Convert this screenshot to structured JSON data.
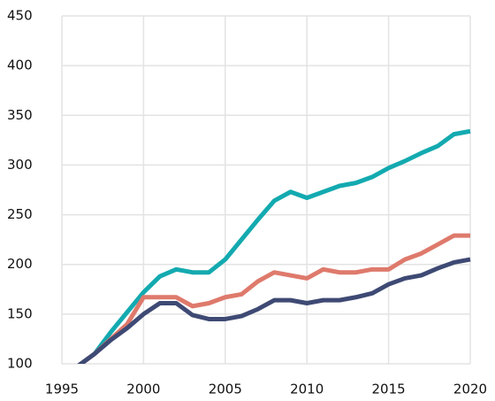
{
  "chart_data": {
    "type": "line",
    "x": [
      1996,
      1997,
      1998,
      1999,
      2000,
      2001,
      2002,
      2003,
      2004,
      2005,
      2006,
      2007,
      2008,
      2009,
      2010,
      2011,
      2012,
      2013,
      2014,
      2015,
      2016,
      2017,
      2018,
      2019,
      2020
    ],
    "series": [
      {
        "color": "#13aab0",
        "values": [
          98,
          110,
          132,
          152,
          172,
          188,
          195,
          192,
          192,
          205,
          225,
          245,
          264,
          273,
          267,
          273,
          279,
          282,
          288,
          297,
          304,
          312,
          319,
          331,
          334
        ]
      },
      {
        "color": "#de7a6c",
        "values": [
          98,
          110,
          125,
          140,
          167,
          167,
          167,
          158,
          161,
          167,
          170,
          183,
          192,
          189,
          186,
          195,
          192,
          192,
          195,
          195,
          205,
          211,
          220,
          229,
          229
        ]
      },
      {
        "color": "#3e4a74",
        "values": [
          98,
          110,
          124,
          136,
          150,
          161,
          161,
          149,
          145,
          145,
          148,
          155,
          164,
          164,
          161,
          164,
          164,
          167,
          171,
          180,
          186,
          189,
          196,
          202,
          205
        ]
      }
    ],
    "xlim": [
      1995,
      2020
    ],
    "xticks": [
      1995,
      2000,
      2005,
      2010,
      2015,
      2020
    ],
    "ylim": [
      100,
      450
    ],
    "yticks": [
      100,
      150,
      200,
      250,
      300,
      350,
      400,
      450
    ],
    "grid": true
  }
}
